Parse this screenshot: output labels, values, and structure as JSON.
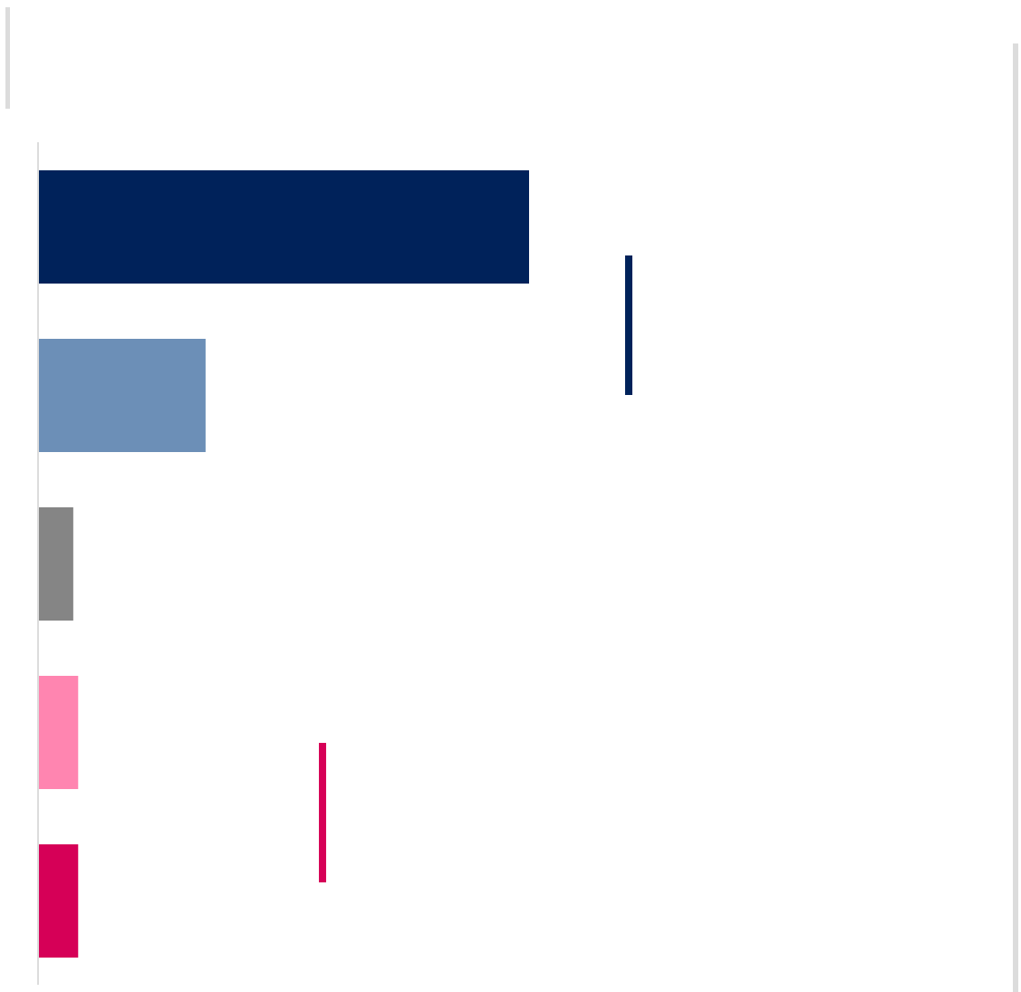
{
  "chart_data": {
    "type": "bar",
    "orientation": "horizontal",
    "categories": [
      "",
      "",
      "",
      "",
      ""
    ],
    "values": [
      100,
      34,
      7,
      8,
      8
    ],
    "colors": [
      "#00225a",
      "#6c8fb7",
      "#858585",
      "#ff85b0",
      "#d60057"
    ],
    "xlim": [
      0,
      100
    ],
    "title": "",
    "xlabel": "",
    "ylabel": "",
    "grid": false,
    "legend": "none",
    "markers": [
      {
        "color": "#00225a"
      },
      {
        "color": "#d60057"
      }
    ]
  },
  "colors": {
    "frame": "#dcdcdc",
    "axis": "#dcdcdc"
  }
}
